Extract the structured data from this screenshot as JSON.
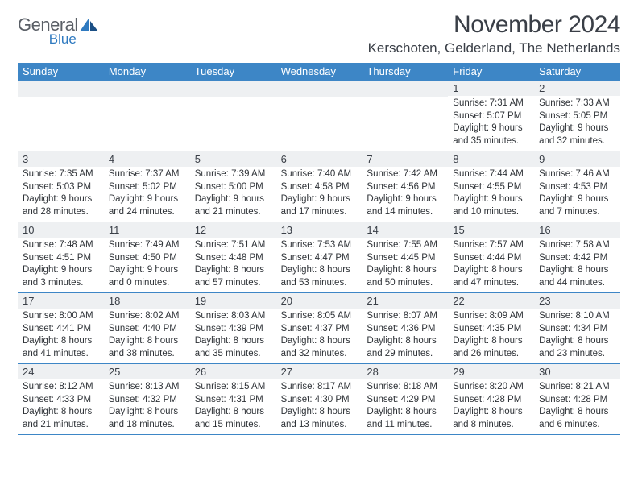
{
  "logo": {
    "word1": "General",
    "word2": "Blue"
  },
  "title": "November 2024",
  "location": "Kerschoten, Gelderland, The Netherlands",
  "colors": {
    "header_bar": "#3d86c6",
    "daynum_bg": "#eef0f2",
    "text": "#3a3f47",
    "accent": "#2f7ac0"
  },
  "day_names": [
    "Sunday",
    "Monday",
    "Tuesday",
    "Wednesday",
    "Thursday",
    "Friday",
    "Saturday"
  ],
  "weeks": [
    [
      {
        "n": "",
        "sun": "",
        "set": "",
        "dl": ""
      },
      {
        "n": "",
        "sun": "",
        "set": "",
        "dl": ""
      },
      {
        "n": "",
        "sun": "",
        "set": "",
        "dl": ""
      },
      {
        "n": "",
        "sun": "",
        "set": "",
        "dl": ""
      },
      {
        "n": "",
        "sun": "",
        "set": "",
        "dl": ""
      },
      {
        "n": "1",
        "sun": "Sunrise: 7:31 AM",
        "set": "Sunset: 5:07 PM",
        "dl": "Daylight: 9 hours and 35 minutes."
      },
      {
        "n": "2",
        "sun": "Sunrise: 7:33 AM",
        "set": "Sunset: 5:05 PM",
        "dl": "Daylight: 9 hours and 32 minutes."
      }
    ],
    [
      {
        "n": "3",
        "sun": "Sunrise: 7:35 AM",
        "set": "Sunset: 5:03 PM",
        "dl": "Daylight: 9 hours and 28 minutes."
      },
      {
        "n": "4",
        "sun": "Sunrise: 7:37 AM",
        "set": "Sunset: 5:02 PM",
        "dl": "Daylight: 9 hours and 24 minutes."
      },
      {
        "n": "5",
        "sun": "Sunrise: 7:39 AM",
        "set": "Sunset: 5:00 PM",
        "dl": "Daylight: 9 hours and 21 minutes."
      },
      {
        "n": "6",
        "sun": "Sunrise: 7:40 AM",
        "set": "Sunset: 4:58 PM",
        "dl": "Daylight: 9 hours and 17 minutes."
      },
      {
        "n": "7",
        "sun": "Sunrise: 7:42 AM",
        "set": "Sunset: 4:56 PM",
        "dl": "Daylight: 9 hours and 14 minutes."
      },
      {
        "n": "8",
        "sun": "Sunrise: 7:44 AM",
        "set": "Sunset: 4:55 PM",
        "dl": "Daylight: 9 hours and 10 minutes."
      },
      {
        "n": "9",
        "sun": "Sunrise: 7:46 AM",
        "set": "Sunset: 4:53 PM",
        "dl": "Daylight: 9 hours and 7 minutes."
      }
    ],
    [
      {
        "n": "10",
        "sun": "Sunrise: 7:48 AM",
        "set": "Sunset: 4:51 PM",
        "dl": "Daylight: 9 hours and 3 minutes."
      },
      {
        "n": "11",
        "sun": "Sunrise: 7:49 AM",
        "set": "Sunset: 4:50 PM",
        "dl": "Daylight: 9 hours and 0 minutes."
      },
      {
        "n": "12",
        "sun": "Sunrise: 7:51 AM",
        "set": "Sunset: 4:48 PM",
        "dl": "Daylight: 8 hours and 57 minutes."
      },
      {
        "n": "13",
        "sun": "Sunrise: 7:53 AM",
        "set": "Sunset: 4:47 PM",
        "dl": "Daylight: 8 hours and 53 minutes."
      },
      {
        "n": "14",
        "sun": "Sunrise: 7:55 AM",
        "set": "Sunset: 4:45 PM",
        "dl": "Daylight: 8 hours and 50 minutes."
      },
      {
        "n": "15",
        "sun": "Sunrise: 7:57 AM",
        "set": "Sunset: 4:44 PM",
        "dl": "Daylight: 8 hours and 47 minutes."
      },
      {
        "n": "16",
        "sun": "Sunrise: 7:58 AM",
        "set": "Sunset: 4:42 PM",
        "dl": "Daylight: 8 hours and 44 minutes."
      }
    ],
    [
      {
        "n": "17",
        "sun": "Sunrise: 8:00 AM",
        "set": "Sunset: 4:41 PM",
        "dl": "Daylight: 8 hours and 41 minutes."
      },
      {
        "n": "18",
        "sun": "Sunrise: 8:02 AM",
        "set": "Sunset: 4:40 PM",
        "dl": "Daylight: 8 hours and 38 minutes."
      },
      {
        "n": "19",
        "sun": "Sunrise: 8:03 AM",
        "set": "Sunset: 4:39 PM",
        "dl": "Daylight: 8 hours and 35 minutes."
      },
      {
        "n": "20",
        "sun": "Sunrise: 8:05 AM",
        "set": "Sunset: 4:37 PM",
        "dl": "Daylight: 8 hours and 32 minutes."
      },
      {
        "n": "21",
        "sun": "Sunrise: 8:07 AM",
        "set": "Sunset: 4:36 PM",
        "dl": "Daylight: 8 hours and 29 minutes."
      },
      {
        "n": "22",
        "sun": "Sunrise: 8:09 AM",
        "set": "Sunset: 4:35 PM",
        "dl": "Daylight: 8 hours and 26 minutes."
      },
      {
        "n": "23",
        "sun": "Sunrise: 8:10 AM",
        "set": "Sunset: 4:34 PM",
        "dl": "Daylight: 8 hours and 23 minutes."
      }
    ],
    [
      {
        "n": "24",
        "sun": "Sunrise: 8:12 AM",
        "set": "Sunset: 4:33 PM",
        "dl": "Daylight: 8 hours and 21 minutes."
      },
      {
        "n": "25",
        "sun": "Sunrise: 8:13 AM",
        "set": "Sunset: 4:32 PM",
        "dl": "Daylight: 8 hours and 18 minutes."
      },
      {
        "n": "26",
        "sun": "Sunrise: 8:15 AM",
        "set": "Sunset: 4:31 PM",
        "dl": "Daylight: 8 hours and 15 minutes."
      },
      {
        "n": "27",
        "sun": "Sunrise: 8:17 AM",
        "set": "Sunset: 4:30 PM",
        "dl": "Daylight: 8 hours and 13 minutes."
      },
      {
        "n": "28",
        "sun": "Sunrise: 8:18 AM",
        "set": "Sunset: 4:29 PM",
        "dl": "Daylight: 8 hours and 11 minutes."
      },
      {
        "n": "29",
        "sun": "Sunrise: 8:20 AM",
        "set": "Sunset: 4:28 PM",
        "dl": "Daylight: 8 hours and 8 minutes."
      },
      {
        "n": "30",
        "sun": "Sunrise: 8:21 AM",
        "set": "Sunset: 4:28 PM",
        "dl": "Daylight: 8 hours and 6 minutes."
      }
    ]
  ]
}
